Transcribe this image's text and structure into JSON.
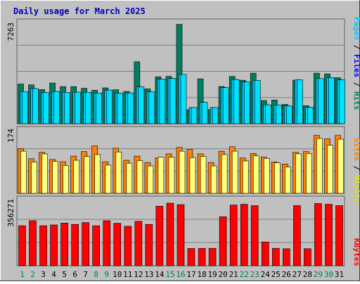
{
  "title": "Daily usage for March 2025",
  "colors": {
    "background": "#c0c0c0",
    "plot_background": "#c0c0c0",
    "frame": "#808080",
    "grid": "#808080",
    "title": "#0000c0",
    "hits": "#007f5f",
    "files": "#00c8ff",
    "pages": "#00e0ff",
    "visits": "#ff8000",
    "sites": "#ffff80",
    "kbytes": "#ff0000",
    "weekend_label": "#008040",
    "weekday_label": "#000000"
  },
  "left_labels": {
    "top": "7263",
    "middle": "174",
    "bottom": "356271"
  },
  "right_labels": {
    "top": [
      "Hits",
      "Files",
      "Pages"
    ],
    "middle": [
      "Visits",
      "Sites"
    ],
    "bottom": [
      "KBytes"
    ]
  },
  "chart_data": {
    "type": "bar",
    "title": "Daily usage for March 2025",
    "categories": [
      "1",
      "2",
      "3",
      "4",
      "5",
      "6",
      "7",
      "8",
      "9",
      "10",
      "11",
      "12",
      "13",
      "14",
      "15",
      "16",
      "17",
      "18",
      "19",
      "20",
      "21",
      "22",
      "23",
      "24",
      "25",
      "26",
      "27",
      "28",
      "29",
      "30",
      "31"
    ],
    "weekend_days": [
      "1",
      "2",
      "8",
      "9",
      "15",
      "16",
      "22",
      "23",
      "29",
      "30"
    ],
    "panels": [
      {
        "name": "top",
        "ymax": 7263,
        "series": [
          {
            "name": "Hits",
            "values": [
              2790,
              2730,
              2400,
              2860,
              2610,
              2610,
              2490,
              2350,
              2520,
              2390,
              2270,
              4360,
              2450,
              3300,
              3330,
              6980,
              990,
              3150,
              990,
              2620,
              3330,
              3060,
              3550,
              1630,
              1660,
              1360,
              3060,
              1270,
              3550,
              3500,
              3230
            ]
          },
          {
            "name": "Files",
            "values": [
              2260,
              2470,
              2190,
              2270,
              2210,
              2220,
              2210,
              2160,
              2360,
              2140,
              2170,
              2590,
              2240,
              3130,
              3180,
              3470,
              1140,
              1500,
              1140,
              2540,
              3110,
              2940,
              3050,
              1330,
              1320,
              1250,
              3090,
              1160,
              3170,
              3240,
              3090
            ]
          },
          {
            "name": "Pages",
            "values": [
              2260,
              2470,
              2190,
              2270,
              2210,
              2220,
              2210,
              2160,
              2360,
              2140,
              2170,
              2590,
              2240,
              3130,
              3180,
              3470,
              1140,
              1500,
              1140,
              2540,
              3110,
              2940,
              3050,
              1330,
              1320,
              1250,
              3090,
              1160,
              3170,
              3240,
              3090
            ]
          }
        ]
      },
      {
        "name": "middle",
        "ymax": 174,
        "series": [
          {
            "name": "Visits",
            "values": [
              119,
              92,
              109,
              90,
              84,
              99,
              111,
              126,
              84,
              120,
              88,
              99,
              82,
              94,
              105,
              122,
              117,
              105,
              82,
              112,
              124,
              94,
              106,
              97,
              83,
              78,
              109,
              111,
              154,
              145,
              154
            ]
          },
          {
            "name": "Sites",
            "values": [
              112,
              83,
              105,
              85,
              74,
              88,
              98,
              103,
              75,
              110,
              80,
              87,
              73,
              96,
              96,
              112,
              95,
              98,
              73,
              103,
              112,
              86,
              100,
              93,
              81,
              70,
              105,
              106,
              146,
              128,
              144
            ]
          }
        ]
      },
      {
        "name": "bottom",
        "ymax": 356271,
        "series": [
          {
            "name": "KBytes",
            "values": [
              209000,
              235000,
              209000,
              213000,
              223000,
              216000,
              226000,
              209000,
              235000,
              222000,
              206000,
              232000,
              216000,
              311000,
              327000,
              319000,
              90000,
              91000,
              91000,
              256000,
              317000,
              321000,
              314000,
              124000,
              91000,
              89000,
              314000,
              89000,
              325000,
              321000,
              314000
            ]
          }
        ]
      }
    ]
  }
}
